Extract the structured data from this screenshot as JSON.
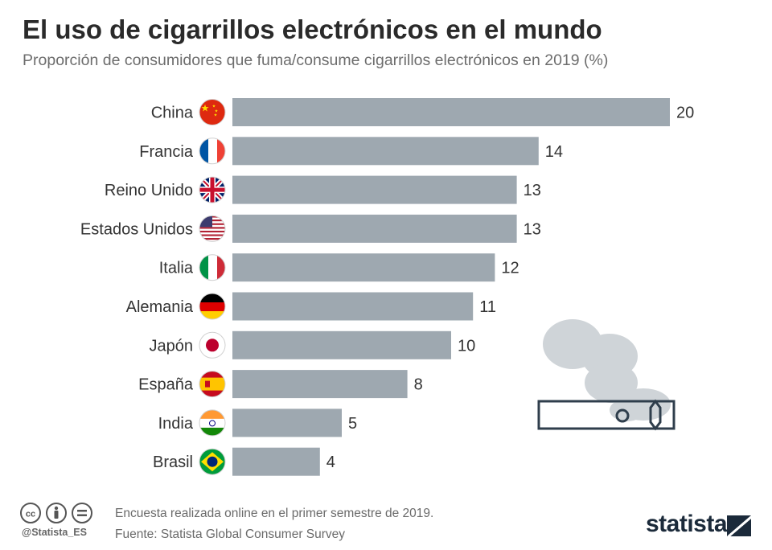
{
  "header": {
    "title": "El uso de cigarrillos electrónicos en el mundo",
    "subtitle": "Proporción de consumidores que fuma/consume cigarrillos electrónicos en 2019 (%)"
  },
  "chart_data": {
    "type": "bar",
    "orientation": "horizontal",
    "title": "El uso de cigarrillos electrónicos en el mundo",
    "subtitle": "Proporción de consumidores que fuma/consume cigarrillos electrónicos en 2019 (%)",
    "categories": [
      "China",
      "Francia",
      "Reino Unido",
      "Estados Unidos",
      "Italia",
      "Alemania",
      "Japón",
      "España",
      "India",
      "Brasil"
    ],
    "values": [
      20,
      14,
      13,
      13,
      12,
      11,
      10,
      8,
      5,
      4
    ],
    "flags": [
      "china-flag-icon",
      "france-flag-icon",
      "uk-flag-icon",
      "usa-flag-icon",
      "italy-flag-icon",
      "germany-flag-icon",
      "japan-flag-icon",
      "spain-flag-icon",
      "india-flag-icon",
      "brazil-flag-icon"
    ],
    "xlim": [
      0,
      20
    ],
    "grid": false,
    "bar_color": "#9ea8b0",
    "data_labels": true
  },
  "footer": {
    "note": "Encuesta realizada online en el primer semestre de 2019.",
    "source": "Fuente: Statista Global Consumer Survey",
    "handle": "@Statista_ES",
    "brand": "statista"
  },
  "colors": {
    "bar": "#9ea8b0",
    "smoke": "#cfd4d8",
    "ecig_outline": "#2f3e4c",
    "brand": "#1b2a3a"
  }
}
